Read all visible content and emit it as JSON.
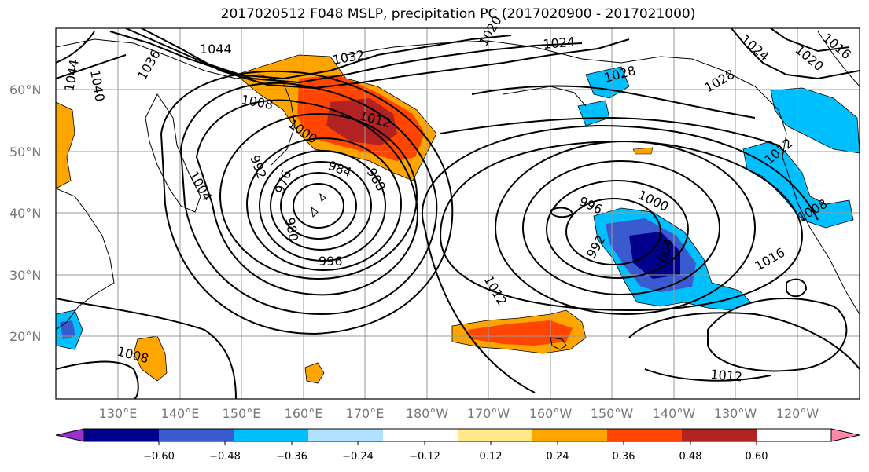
{
  "title": "2017020512 F048 MSLP, precipitation PC (2017020900 - 2017021000)",
  "map": {
    "lat_ticks": [
      "60°N",
      "50°N",
      "40°N",
      "30°N",
      "20°N"
    ],
    "lon_ticks": [
      "130°E",
      "140°E",
      "150°E",
      "160°E",
      "170°E",
      "180°W",
      "170°W",
      "160°W",
      "150°W",
      "140°W",
      "130°W",
      "120°W"
    ],
    "isobar_labels": [
      {
        "text": "1044"
      },
      {
        "text": "1040"
      },
      {
        "text": "1044"
      },
      {
        "text": "1036"
      },
      {
        "text": "1032"
      },
      {
        "text": "1024"
      },
      {
        "text": "1020"
      },
      {
        "text": "1024"
      },
      {
        "text": "1020"
      },
      {
        "text": "1016"
      },
      {
        "text": "1028"
      },
      {
        "text": "1028"
      },
      {
        "text": "1008"
      },
      {
        "text": "1012"
      },
      {
        "text": "1000"
      },
      {
        "text": "992"
      },
      {
        "text": "1004"
      },
      {
        "text": "984"
      },
      {
        "text": "988"
      },
      {
        "text": "976"
      },
      {
        "text": "980"
      },
      {
        "text": "996"
      },
      {
        "text": "996"
      },
      {
        "text": "1000"
      },
      {
        "text": "992"
      },
      {
        "text": "1004"
      },
      {
        "text": "1008"
      },
      {
        "text": "1016"
      },
      {
        "text": "1012"
      },
      {
        "text": "1012"
      },
      {
        "text": "1008"
      },
      {
        "text": "1012"
      }
    ]
  },
  "colorbar": {
    "colors": [
      "#9932CC",
      "#00008B",
      "#3A5BCF",
      "#00BFFF",
      "#B0E2FF",
      "#FFFFFF",
      "#FFE98A",
      "#FFA500",
      "#FF4500",
      "#B22222",
      "#FF88AA"
    ],
    "tick_labels": [
      "−0.60",
      "−0.48",
      "−0.36",
      "−0.24",
      "−0.12",
      "0.12",
      "0.24",
      "0.36",
      "0.48",
      "0.60"
    ]
  }
}
